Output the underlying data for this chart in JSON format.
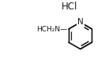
{
  "background_color": "#ffffff",
  "hcl_text": "HCl",
  "bond_color": "#1a1a1a",
  "text_color": "#1a1a1a",
  "lw": 1.0
}
